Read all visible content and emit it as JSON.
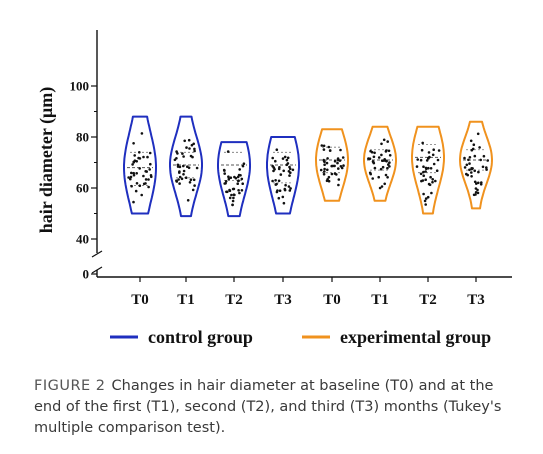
{
  "chart_data": {
    "type": "violin",
    "ylabel": "hair diameter (μm)",
    "yticks": [
      0,
      40,
      60,
      80,
      100
    ],
    "ylim": [
      40,
      100
    ],
    "axis_break": true,
    "categories": [
      "T0",
      "T1",
      "T2",
      "T3",
      "T0",
      "T1",
      "T2",
      "T3"
    ],
    "legend_position": "bottom",
    "series": [
      {
        "name": "control group",
        "color": "#1f2fbf",
        "violins": [
          {
            "label": "T0",
            "min": 50,
            "max": 88,
            "median": 68,
            "q1": 61,
            "q3": 74
          },
          {
            "label": "T1",
            "min": 49,
            "max": 88,
            "median": 69,
            "q1": 64,
            "q3": 74
          },
          {
            "label": "T2",
            "min": 49,
            "max": 78,
            "median": 69,
            "q1": 63,
            "q3": 74
          },
          {
            "label": "T3",
            "min": 50,
            "max": 80,
            "median": 69,
            "q1": 62,
            "q3": 74
          }
        ]
      },
      {
        "name": "experimental group",
        "color": "#f0921e",
        "violins": [
          {
            "label": "T0",
            "min": 55,
            "max": 83,
            "median": 71,
            "q1": 66,
            "q3": 76
          },
          {
            "label": "T1",
            "min": 55,
            "max": 84,
            "median": 71,
            "q1": 67,
            "q3": 75
          },
          {
            "label": "T2",
            "min": 50,
            "max": 84,
            "median": 72,
            "q1": 66,
            "q3": 77
          },
          {
            "label": "T3",
            "min": 52,
            "max": 86,
            "median": 71,
            "q1": 67,
            "q3": 75
          }
        ]
      }
    ]
  },
  "caption": {
    "figure_label": "FIGURE 2",
    "text": "Changes in hair diameter at baseline (T0) and at the end of the first (T1), second (T2), and third (T3) months (Tukey's multiple comparison test)."
  }
}
